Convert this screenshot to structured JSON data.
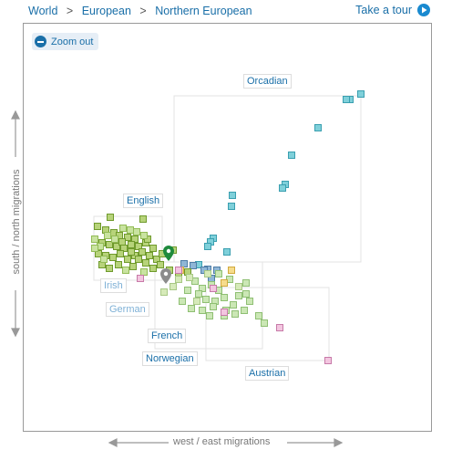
{
  "breadcrumb": {
    "world": "World",
    "sep1": ">",
    "european": "European",
    "sep2": ">",
    "northern": "Northern European"
  },
  "tour": {
    "label": "Take a tour"
  },
  "zoom": {
    "label": "Zoom out"
  },
  "axes": {
    "y": "south / north migrations",
    "x": "west / east migrations"
  },
  "clusters": [
    {
      "name": "Orcadian",
      "color": "#7fd0da",
      "stroke": "#3a9fb0"
    },
    {
      "name": "English",
      "color": "#b7d37a",
      "stroke": "#6f9a2c"
    },
    {
      "name": "Irish",
      "color": "#c9e3a0",
      "stroke": "#92bb55"
    },
    {
      "name": "German",
      "color": "#d6eab9",
      "stroke": "#a8c885"
    },
    {
      "name": "French",
      "color": "#cbe7b5",
      "stroke": "#8fbf73"
    },
    {
      "name": "Norwegian",
      "color": "#8fb6d6",
      "stroke": "#4f7da6"
    },
    {
      "name": "Austrian",
      "color": "#f3c6e0",
      "stroke": "#c77aa8"
    }
  ],
  "colors": {
    "accent": "#1a6fa8",
    "marker_green": "#1e8a3c",
    "marker_gray": "#8c8c8c"
  }
}
